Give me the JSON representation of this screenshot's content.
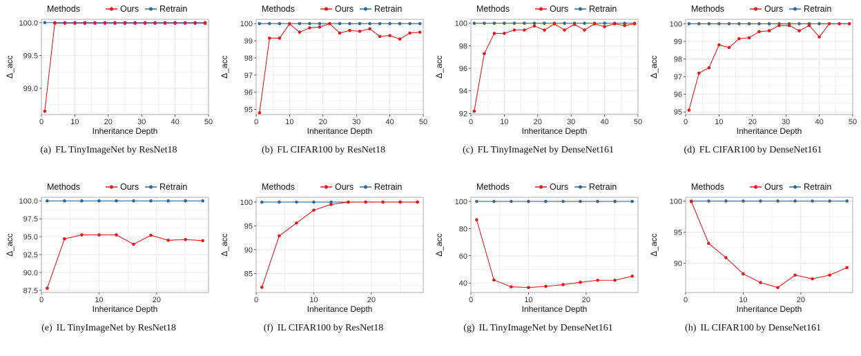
{
  "legend": {
    "title": "Methods",
    "ours": "Ours",
    "retrain": "Retrain"
  },
  "colors": {
    "ours": "#e41a1c",
    "retrain": "#2c6a99",
    "grid": "#e5e5e5",
    "border": "#999999"
  },
  "chart_data": [
    {
      "type": "line",
      "label": "(a)",
      "caption": "FL TinyImageNet by ResNet18",
      "xlabel": "Inheritance Depth",
      "ylabel": "Δ_acc",
      "xlim": [
        0,
        50
      ],
      "xticks": [
        0,
        10,
        20,
        30,
        40,
        50
      ],
      "ylim": [
        98.6,
        100.05
      ],
      "yticks": [
        99.0,
        99.5,
        100.0
      ],
      "yfmt": 1,
      "x": [
        1,
        4,
        7,
        10,
        13,
        16,
        19,
        22,
        25,
        28,
        31,
        34,
        37,
        40,
        43,
        46,
        49
      ],
      "series": [
        {
          "name": "Ours",
          "values": [
            98.65,
            99.99,
            99.99,
            99.99,
            99.99,
            99.99,
            99.99,
            99.99,
            99.99,
            99.99,
            99.99,
            99.99,
            99.99,
            99.99,
            99.99,
            99.99,
            99.99
          ]
        },
        {
          "name": "Retrain",
          "values": [
            100,
            100,
            100,
            100,
            100,
            100,
            100,
            100,
            100,
            100,
            100,
            100,
            100,
            100,
            100,
            100,
            100
          ]
        }
      ]
    },
    {
      "type": "line",
      "label": "(b)",
      "caption": "FL CIFAR100 by ResNet18",
      "xlabel": "Inheritance Depth",
      "ylabel": "Δ_acc",
      "xlim": [
        0,
        50
      ],
      "xticks": [
        0,
        10,
        20,
        30,
        40,
        50
      ],
      "ylim": [
        94.7,
        100.25
      ],
      "yticks": [
        95,
        96,
        97,
        98,
        99,
        100
      ],
      "yfmt": 0,
      "x": [
        1,
        4,
        7,
        10,
        13,
        16,
        19,
        22,
        25,
        28,
        31,
        34,
        37,
        40,
        43,
        46,
        49
      ],
      "series": [
        {
          "name": "Ours",
          "values": [
            94.8,
            99.15,
            99.15,
            99.98,
            99.5,
            99.75,
            99.8,
            100.0,
            99.45,
            99.6,
            99.55,
            99.7,
            99.25,
            99.3,
            99.1,
            99.45,
            99.5
          ]
        },
        {
          "name": "Retrain",
          "values": [
            100,
            100,
            100,
            100,
            100,
            100,
            100,
            100,
            100,
            100,
            100,
            100,
            100,
            100,
            100,
            100,
            100
          ]
        }
      ]
    },
    {
      "type": "line",
      "label": "(c)",
      "caption": "FL TinyImageNet by DenseNet161",
      "xlabel": "Inheritance Depth",
      "ylabel": "Δ_acc",
      "xlim": [
        0,
        50
      ],
      "xticks": [
        0,
        10,
        20,
        30,
        40,
        50
      ],
      "ylim": [
        91.9,
        100.35
      ],
      "yticks": [
        92,
        94,
        96,
        98,
        100
      ],
      "yfmt": 0,
      "x": [
        1,
        4,
        7,
        10,
        13,
        16,
        19,
        22,
        25,
        28,
        31,
        34,
        37,
        40,
        43,
        46,
        49
      ],
      "series": [
        {
          "name": "Ours",
          "values": [
            92.2,
            97.3,
            99.1,
            99.1,
            99.4,
            99.4,
            99.75,
            99.4,
            99.95,
            99.4,
            99.9,
            99.4,
            99.95,
            99.7,
            99.95,
            99.8,
            99.95
          ]
        },
        {
          "name": "Retrain",
          "values": [
            100,
            100,
            100,
            100,
            100,
            100,
            100,
            100,
            100,
            100,
            100,
            100,
            100,
            100,
            100,
            100,
            100
          ]
        }
      ]
    },
    {
      "type": "line",
      "label": "(d)",
      "caption": "FL CIFAR100 by DenseNet161",
      "xlabel": "Inheritance Depth",
      "ylabel": "Δ_acc",
      "xlim": [
        0,
        50
      ],
      "xticks": [
        0,
        10,
        20,
        30,
        40,
        50
      ],
      "ylim": [
        94.85,
        100.25
      ],
      "yticks": [
        95,
        96,
        97,
        98,
        99,
        100
      ],
      "yfmt": 0,
      "x": [
        1,
        4,
        7,
        10,
        13,
        16,
        19,
        22,
        25,
        28,
        31,
        34,
        37,
        40,
        43,
        46,
        49
      ],
      "series": [
        {
          "name": "Ours",
          "values": [
            95.1,
            97.2,
            97.5,
            98.8,
            98.65,
            99.15,
            99.2,
            99.55,
            99.6,
            99.9,
            99.9,
            99.6,
            99.9,
            99.25,
            100.0,
            100.0,
            100.0
          ]
        },
        {
          "name": "Retrain",
          "values": [
            100,
            100,
            100,
            100,
            100,
            100,
            100,
            100,
            100,
            100,
            100,
            100,
            100,
            100,
            100,
            100,
            100
          ]
        }
      ]
    },
    {
      "type": "line",
      "label": "(e)",
      "caption": "IL TinyImageNet by ResNet18",
      "xlabel": "Inheritance Depth",
      "ylabel": "Δ_acc",
      "xlim": [
        0,
        29
      ],
      "xticks": [
        0,
        10,
        20
      ],
      "ylim": [
        87.2,
        100.5
      ],
      "yticks": [
        87.5,
        90.0,
        92.5,
        95.0,
        97.5,
        100.0
      ],
      "yfmt": 1,
      "x": [
        1,
        4,
        7,
        10,
        13,
        16,
        19,
        22,
        25,
        28
      ],
      "series": [
        {
          "name": "Ours",
          "values": [
            87.8,
            94.7,
            95.25,
            95.25,
            95.25,
            93.95,
            95.2,
            94.5,
            94.6,
            94.45
          ]
        },
        {
          "name": "Retrain",
          "values": [
            100,
            100,
            100,
            100,
            100,
            100,
            100,
            100,
            100,
            100
          ]
        }
      ]
    },
    {
      "type": "line",
      "label": "(f)",
      "caption": "IL CIFAR100 by ResNet18",
      "xlabel": "Inheritance Depth",
      "ylabel": "Δ_acc",
      "xlim": [
        0,
        29
      ],
      "xticks": [
        0,
        10,
        20
      ],
      "ylim": [
        81,
        101
      ],
      "yticks": [
        85,
        90,
        95,
        100
      ],
      "yfmt": 0,
      "x": [
        1,
        4,
        7,
        10,
        13,
        16,
        19,
        22,
        25,
        28
      ],
      "series": [
        {
          "name": "Ours",
          "values": [
            82.1,
            92.9,
            95.6,
            98.3,
            99.5,
            100,
            100,
            100,
            100,
            100
          ]
        },
        {
          "name": "Retrain",
          "values": [
            100,
            100,
            100,
            100,
            100,
            100,
            100,
            100,
            100,
            100
          ]
        }
      ]
    },
    {
      "type": "line",
      "label": "(g)",
      "caption": "IL TinyImageNet by DenseNet161",
      "xlabel": "Inheritance Depth",
      "ylabel": "Δ_acc",
      "xlim": [
        0,
        29
      ],
      "xticks": [
        0,
        10,
        20
      ],
      "ylim": [
        33,
        103
      ],
      "yticks": [
        40,
        60,
        80,
        100
      ],
      "yfmt": 0,
      "x": [
        1,
        4,
        7,
        10,
        13,
        16,
        19,
        22,
        25,
        28
      ],
      "series": [
        {
          "name": "Ours",
          "values": [
            86.5,
            42.2,
            37.2,
            36.7,
            37.5,
            38.8,
            40.5,
            42,
            42,
            45
          ]
        },
        {
          "name": "Retrain",
          "values": [
            100,
            100,
            100,
            100,
            100,
            100,
            100,
            100,
            100,
            100
          ]
        }
      ]
    },
    {
      "type": "line",
      "label": "(h)",
      "caption": "IL CIFAR100 by DenseNet161",
      "xlabel": "Inheritance Depth",
      "ylabel": "Δ_acc",
      "xlim": [
        0,
        29
      ],
      "xticks": [
        0,
        10,
        20
      ],
      "ylim": [
        85.3,
        100.6
      ],
      "yticks": [
        90,
        95,
        100
      ],
      "yfmt": 0,
      "x": [
        1,
        4,
        7,
        10,
        13,
        16,
        19,
        22,
        25,
        28
      ],
      "series": [
        {
          "name": "Ours",
          "values": [
            99.9,
            93.2,
            90.9,
            88.3,
            86.9,
            86.1,
            88.1,
            87.5,
            88.1,
            89.3
          ]
        },
        {
          "name": "Retrain",
          "values": [
            100,
            100,
            100,
            100,
            100,
            100,
            100,
            100,
            100,
            100
          ]
        }
      ]
    }
  ]
}
